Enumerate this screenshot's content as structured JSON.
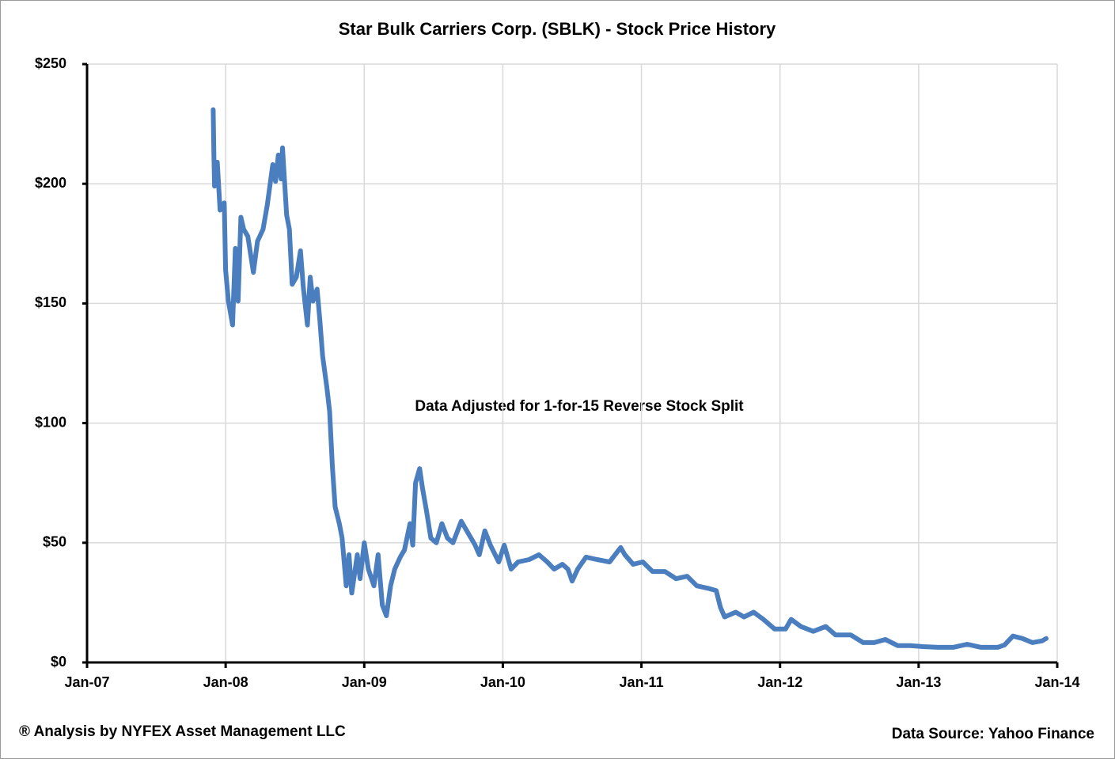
{
  "chart_data": {
    "type": "line",
    "title": "Star Bulk Carriers Corp. (SBLK) - Stock Price History",
    "annotation": "Data Adjusted for 1-for-15 Reverse Stock Split",
    "footer_left": "® Analysis by NYFEX Asset Management LLC",
    "footer_right": "Data Source: Yahoo Finance",
    "grid": true,
    "xlim": [
      2007,
      2014
    ],
    "xticks": [
      {
        "value": 2007,
        "label": "Jan-07"
      },
      {
        "value": 2008,
        "label": "Jan-08"
      },
      {
        "value": 2009,
        "label": "Jan-09"
      },
      {
        "value": 2010,
        "label": "Jan-10"
      },
      {
        "value": 2011,
        "label": "Jan-11"
      },
      {
        "value": 2012,
        "label": "Jan-12"
      },
      {
        "value": 2013,
        "label": "Jan-13"
      },
      {
        "value": 2014,
        "label": "Jan-14"
      }
    ],
    "ylim": [
      0,
      250
    ],
    "yticks": [
      {
        "value": 0,
        "label": "$0"
      },
      {
        "value": 50,
        "label": "$50"
      },
      {
        "value": 100,
        "label": "$100"
      },
      {
        "value": 150,
        "label": "$150"
      },
      {
        "value": 200,
        "label": "$200"
      },
      {
        "value": 250,
        "label": "$250"
      }
    ],
    "series": [
      {
        "color": "#4a7ebf",
        "x": [
          2007.91,
          2007.915,
          2007.92,
          2007.94,
          2007.96,
          2007.99,
          2008.0,
          2008.02,
          2008.05,
          2008.07,
          2008.09,
          2008.11,
          2008.13,
          2008.16,
          2008.2,
          2008.23,
          2008.27,
          2008.3,
          2008.34,
          2008.36,
          2008.38,
          2008.4,
          2008.41,
          2008.44,
          2008.46,
          2008.48,
          2008.51,
          2008.54,
          2008.56,
          2008.59,
          2008.61,
          2008.63,
          2008.66,
          2008.68,
          2008.7,
          2008.73,
          2008.75,
          2008.77,
          2008.79,
          2008.82,
          2008.84,
          2008.87,
          2008.89,
          2008.91,
          2008.95,
          2008.97,
          2009.0,
          2009.03,
          2009.07,
          2009.1,
          2009.13,
          2009.16,
          2009.19,
          2009.22,
          2009.26,
          2009.29,
          2009.33,
          2009.35,
          2009.37,
          2009.4,
          2009.42,
          2009.45,
          2009.48,
          2009.52,
          2009.56,
          2009.6,
          2009.64,
          2009.7,
          2009.74,
          2009.8,
          2009.83,
          2009.87,
          2009.91,
          2009.97,
          2010.01,
          2010.06,
          2010.11,
          2010.19,
          2010.26,
          2010.32,
          2010.37,
          2010.43,
          2010.47,
          2010.5,
          2010.54,
          2010.6,
          2010.68,
          2010.77,
          2010.85,
          2010.88,
          2010.94,
          2011.01,
          2011.08,
          2011.17,
          2011.25,
          2011.33,
          2011.4,
          2011.48,
          2011.54,
          2011.57,
          2011.6,
          2011.68,
          2011.74,
          2011.81,
          2011.88,
          2011.96,
          2012.04,
          2012.08,
          2012.15,
          2012.24,
          2012.33,
          2012.4,
          2012.51,
          2012.6,
          2012.68,
          2012.76,
          2012.85,
          2012.94,
          2013.03,
          2013.14,
          2013.25,
          2013.35,
          2013.45,
          2013.57,
          2013.62,
          2013.68,
          2013.75,
          2013.82,
          2013.89,
          2013.92
        ],
        "values": [
          231,
          212,
          199,
          209,
          189,
          192,
          164,
          151,
          141,
          173,
          151,
          186,
          181,
          178,
          163,
          176,
          181,
          191,
          208,
          201,
          212,
          202,
          215,
          187,
          181,
          158,
          161,
          172,
          157,
          141,
          161,
          151,
          156,
          143,
          128,
          115,
          105,
          82,
          65,
          58,
          52,
          32,
          45,
          29,
          45,
          35,
          50,
          39,
          32,
          45,
          24,
          19.5,
          32,
          39,
          44,
          47,
          58,
          49,
          75,
          81,
          73,
          63,
          52,
          50,
          58,
          52,
          50,
          59,
          55,
          49,
          45,
          55,
          49,
          42,
          49,
          39,
          42,
          43,
          45,
          42,
          39,
          41,
          39,
          34,
          39,
          44,
          43,
          42,
          48,
          45,
          41,
          42,
          38,
          38,
          35,
          36,
          32,
          31,
          30,
          23,
          19,
          21,
          19,
          21,
          18,
          14,
          14,
          18,
          15,
          13,
          15,
          11.5,
          11.5,
          8.3,
          8.3,
          9.6,
          7,
          7,
          6.6,
          6.3,
          6.3,
          7.6,
          6.3,
          6.3,
          7.3,
          11,
          10,
          8.3,
          9,
          10
        ]
      }
    ]
  }
}
